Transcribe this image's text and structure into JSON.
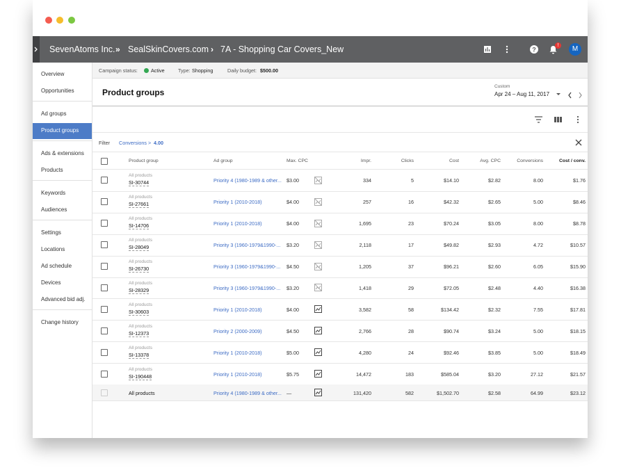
{
  "header": {
    "breadcrumb": [
      "SevenAtoms Inc.",
      "SealSkinCovers.com",
      "7A - Shopping Car Covers_New"
    ],
    "notification_badge": "!",
    "avatar": "M"
  },
  "sidebar": {
    "groups": [
      [
        {
          "label": "Overview"
        },
        {
          "label": "Opportunities"
        }
      ],
      [
        {
          "label": "Ad groups"
        },
        {
          "label": "Product groups",
          "active": true
        }
      ],
      [
        {
          "label": "Ads & extensions"
        },
        {
          "label": "Products"
        }
      ],
      [
        {
          "label": "Keywords"
        },
        {
          "label": "Audiences"
        }
      ],
      [
        {
          "label": "Settings"
        },
        {
          "label": "Locations"
        },
        {
          "label": "Ad schedule"
        },
        {
          "label": "Devices"
        },
        {
          "label": "Advanced bid adj."
        }
      ],
      [
        {
          "label": "Change history"
        }
      ]
    ]
  },
  "status_bar": {
    "status_label": "Campaign status:",
    "status": "Active",
    "type_label": "Type:",
    "type": "Shopping",
    "budget_label": "Daily budget:",
    "budget": "$500.00"
  },
  "page": {
    "title": "Product groups",
    "date_range_label": "Custom",
    "date_range": "Apr 24 – Aug 11, 2017"
  },
  "filter": {
    "label": "Filter",
    "condition": "Conversions >",
    "value": "4.00"
  },
  "table": {
    "columns": [
      "Product group",
      "Ad group",
      "Max. CPC",
      "Impr.",
      "Clicks",
      "Cost",
      "Avg. CPC",
      "Conversions",
      "Cost / conv."
    ],
    "rows": [
      {
        "category": "All products",
        "id": "SI-30744",
        "ad_group": "Priority 4 (1980-1989 & other...",
        "max_cpc": "$3.00",
        "trend_enabled": false,
        "impr": "334",
        "clicks": "5",
        "cost": "$14.10",
        "avg_cpc": "$2.82",
        "conversions": "8.00",
        "cost_conv": "$1.76"
      },
      {
        "category": "All products",
        "id": "SI-27661",
        "ad_group": "Priority 1 (2010-2018)",
        "max_cpc": "$4.00",
        "trend_enabled": false,
        "impr": "257",
        "clicks": "16",
        "cost": "$42.32",
        "avg_cpc": "$2.65",
        "conversions": "5.00",
        "cost_conv": "$8.46"
      },
      {
        "category": "All products",
        "id": "SI-14706",
        "ad_group": "Priority 1 (2010-2018)",
        "max_cpc": "$4.00",
        "trend_enabled": false,
        "impr": "1,695",
        "clicks": "23",
        "cost": "$70.24",
        "avg_cpc": "$3.05",
        "conversions": "8.00",
        "cost_conv": "$8.78"
      },
      {
        "category": "All products",
        "id": "SI-28049",
        "ad_group": "Priority 3 (1960-1979&1990-...",
        "max_cpc": "$3.20",
        "trend_enabled": false,
        "impr": "2,118",
        "clicks": "17",
        "cost": "$49.82",
        "avg_cpc": "$2.93",
        "conversions": "4.72",
        "cost_conv": "$10.57"
      },
      {
        "category": "All products",
        "id": "SI-26730",
        "ad_group": "Priority 3 (1960-1979&1990-...",
        "max_cpc": "$4.50",
        "trend_enabled": false,
        "impr": "1,205",
        "clicks": "37",
        "cost": "$96.21",
        "avg_cpc": "$2.60",
        "conversions": "6.05",
        "cost_conv": "$15.90"
      },
      {
        "category": "All products",
        "id": "SI-28329",
        "ad_group": "Priority 3 (1960-1979&1990-...",
        "max_cpc": "$3.20",
        "trend_enabled": false,
        "impr": "1,418",
        "clicks": "29",
        "cost": "$72.05",
        "avg_cpc": "$2.48",
        "conversions": "4.40",
        "cost_conv": "$16.38"
      },
      {
        "category": "All products",
        "id": "SI-30603",
        "ad_group": "Priority 1 (2010-2018)",
        "max_cpc": "$4.00",
        "trend_enabled": true,
        "impr": "3,582",
        "clicks": "58",
        "cost": "$134.42",
        "avg_cpc": "$2.32",
        "conversions": "7.55",
        "cost_conv": "$17.81"
      },
      {
        "category": "All products",
        "id": "SI-12373",
        "ad_group": "Priority 2 (2000-2009)",
        "max_cpc": "$4.50",
        "trend_enabled": true,
        "impr": "2,766",
        "clicks": "28",
        "cost": "$90.74",
        "avg_cpc": "$3.24",
        "conversions": "5.00",
        "cost_conv": "$18.15"
      },
      {
        "category": "All products",
        "id": "SI-13378",
        "ad_group": "Priority 1 (2010-2018)",
        "max_cpc": "$5.00",
        "trend_enabled": true,
        "impr": "4,280",
        "clicks": "24",
        "cost": "$92.46",
        "avg_cpc": "$3.85",
        "conversions": "5.00",
        "cost_conv": "$18.49"
      },
      {
        "category": "All products",
        "id": "SI-190448",
        "ad_group": "Priority 1 (2010-2018)",
        "max_cpc": "$5.75",
        "trend_enabled": true,
        "impr": "14,472",
        "clicks": "183",
        "cost": "$585.04",
        "avg_cpc": "$3.20",
        "conversions": "27.12",
        "cost_conv": "$21.57"
      }
    ],
    "total": {
      "category": "All products",
      "ad_group": "Priority 4 (1980-1989 & other...",
      "max_cpc": "—",
      "trend_enabled": true,
      "impr": "131,420",
      "clicks": "582",
      "cost": "$1,502.70",
      "avg_cpc": "$2.58",
      "conversions": "64.99",
      "cost_conv": "$23.12"
    }
  }
}
